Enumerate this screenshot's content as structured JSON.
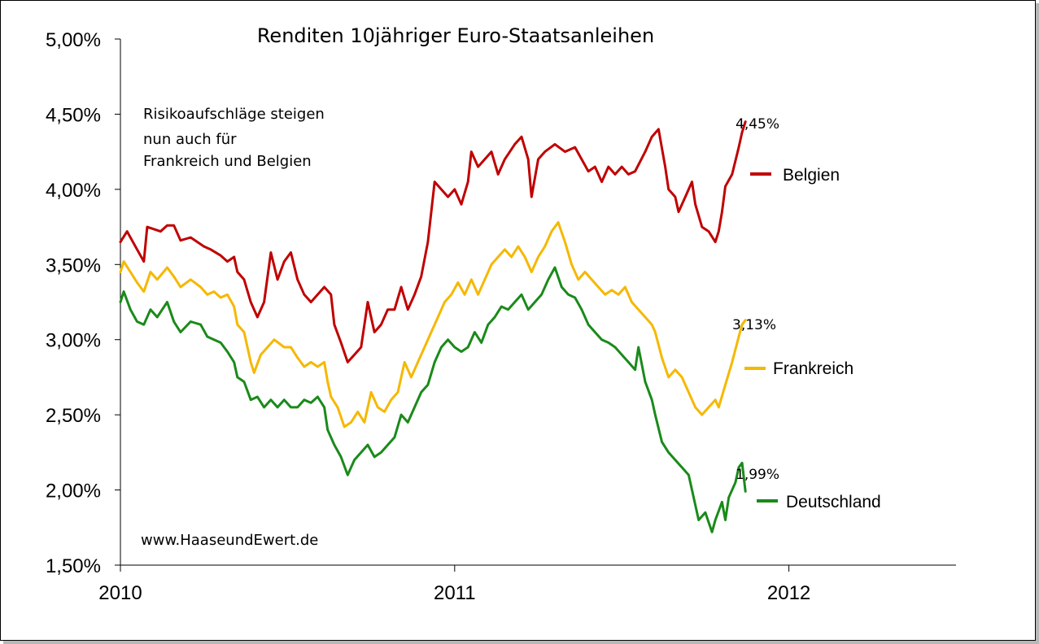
{
  "chart_data": {
    "type": "line",
    "title": "Renditen 10jähriger Euro-Staatsanleihen",
    "annotation": [
      "Risikoaufschläge steigen",
      "nun  auch für",
      "Frankreich und Belgien"
    ],
    "source": "www.HaaseundEwert.de",
    "xlim": [
      2010.0,
      2012.5
    ],
    "xticks": [
      "2010",
      "2011",
      "2012"
    ],
    "ylim": [
      1.5,
      5.0
    ],
    "yticks": [
      "1,50%",
      "2,00%",
      "2,50%",
      "3,00%",
      "3,50%",
      "4,00%",
      "4,50%",
      "5,00%"
    ],
    "series": [
      {
        "name": "Belgien",
        "color": "#c00000",
        "end_label": "4,45%",
        "points": [
          [
            2010.0,
            3.65
          ],
          [
            2010.02,
            3.72
          ],
          [
            2010.05,
            3.6
          ],
          [
            2010.07,
            3.52
          ],
          [
            2010.08,
            3.75
          ],
          [
            2010.12,
            3.72
          ],
          [
            2010.14,
            3.76
          ],
          [
            2010.16,
            3.76
          ],
          [
            2010.18,
            3.66
          ],
          [
            2010.21,
            3.68
          ],
          [
            2010.25,
            3.62
          ],
          [
            2010.27,
            3.6
          ],
          [
            2010.3,
            3.56
          ],
          [
            2010.32,
            3.52
          ],
          [
            2010.34,
            3.55
          ],
          [
            2010.35,
            3.45
          ],
          [
            2010.37,
            3.4
          ],
          [
            2010.39,
            3.25
          ],
          [
            2010.41,
            3.15
          ],
          [
            2010.43,
            3.25
          ],
          [
            2010.45,
            3.58
          ],
          [
            2010.47,
            3.4
          ],
          [
            2010.49,
            3.52
          ],
          [
            2010.51,
            3.58
          ],
          [
            2010.53,
            3.4
          ],
          [
            2010.55,
            3.3
          ],
          [
            2010.57,
            3.25
          ],
          [
            2010.59,
            3.3
          ],
          [
            2010.61,
            3.35
          ],
          [
            2010.63,
            3.3
          ],
          [
            2010.64,
            3.1
          ],
          [
            2010.66,
            2.98
          ],
          [
            2010.68,
            2.85
          ],
          [
            2010.7,
            2.9
          ],
          [
            2010.72,
            2.95
          ],
          [
            2010.73,
            3.1
          ],
          [
            2010.74,
            3.25
          ],
          [
            2010.76,
            3.05
          ],
          [
            2010.78,
            3.1
          ],
          [
            2010.8,
            3.2
          ],
          [
            2010.82,
            3.2
          ],
          [
            2010.84,
            3.35
          ],
          [
            2010.86,
            3.2
          ],
          [
            2010.88,
            3.3
          ],
          [
            2010.9,
            3.42
          ],
          [
            2010.92,
            3.65
          ],
          [
            2010.94,
            4.05
          ],
          [
            2010.96,
            4.0
          ],
          [
            2010.98,
            3.95
          ],
          [
            2011.0,
            4.0
          ],
          [
            2011.02,
            3.9
          ],
          [
            2011.04,
            4.05
          ],
          [
            2011.05,
            4.25
          ],
          [
            2011.07,
            4.15
          ],
          [
            2011.09,
            4.2
          ],
          [
            2011.11,
            4.25
          ],
          [
            2011.13,
            4.1
          ],
          [
            2011.15,
            4.2
          ],
          [
            2011.18,
            4.3
          ],
          [
            2011.2,
            4.35
          ],
          [
            2011.22,
            4.2
          ],
          [
            2011.23,
            3.95
          ],
          [
            2011.25,
            4.2
          ],
          [
            2011.27,
            4.25
          ],
          [
            2011.3,
            4.3
          ],
          [
            2011.33,
            4.25
          ],
          [
            2011.36,
            4.28
          ],
          [
            2011.38,
            4.2
          ],
          [
            2011.4,
            4.12
          ],
          [
            2011.42,
            4.15
          ],
          [
            2011.44,
            4.05
          ],
          [
            2011.46,
            4.15
          ],
          [
            2011.48,
            4.1
          ],
          [
            2011.5,
            4.15
          ],
          [
            2011.52,
            4.1
          ],
          [
            2011.54,
            4.12
          ],
          [
            2011.57,
            4.25
          ],
          [
            2011.59,
            4.35
          ],
          [
            2011.61,
            4.4
          ],
          [
            2011.63,
            4.15
          ],
          [
            2011.64,
            4.0
          ],
          [
            2011.66,
            3.95
          ],
          [
            2011.67,
            3.85
          ],
          [
            2011.69,
            3.95
          ],
          [
            2011.71,
            4.05
          ],
          [
            2011.72,
            3.9
          ],
          [
            2011.74,
            3.75
          ],
          [
            2011.76,
            3.72
          ],
          [
            2011.78,
            3.65
          ],
          [
            2011.79,
            3.72
          ],
          [
            2011.8,
            3.85
          ],
          [
            2011.81,
            4.02
          ],
          [
            2011.83,
            4.1
          ],
          [
            2011.85,
            4.28
          ],
          [
            2011.86,
            4.38
          ],
          [
            2011.87,
            4.45
          ]
        ]
      },
      {
        "name": "Frankreich",
        "color": "#f5b800",
        "end_label": "3,13%",
        "points": [
          [
            2010.0,
            3.45
          ],
          [
            2010.01,
            3.52
          ],
          [
            2010.03,
            3.45
          ],
          [
            2010.05,
            3.38
          ],
          [
            2010.07,
            3.32
          ],
          [
            2010.09,
            3.45
          ],
          [
            2010.11,
            3.4
          ],
          [
            2010.14,
            3.48
          ],
          [
            2010.16,
            3.42
          ],
          [
            2010.18,
            3.35
          ],
          [
            2010.21,
            3.4
          ],
          [
            2010.24,
            3.35
          ],
          [
            2010.26,
            3.3
          ],
          [
            2010.28,
            3.32
          ],
          [
            2010.3,
            3.28
          ],
          [
            2010.32,
            3.3
          ],
          [
            2010.34,
            3.22
          ],
          [
            2010.35,
            3.1
          ],
          [
            2010.37,
            3.05
          ],
          [
            2010.39,
            2.85
          ],
          [
            2010.4,
            2.78
          ],
          [
            2010.42,
            2.9
          ],
          [
            2010.44,
            2.95
          ],
          [
            2010.46,
            3.0
          ],
          [
            2010.49,
            2.95
          ],
          [
            2010.51,
            2.95
          ],
          [
            2010.53,
            2.88
          ],
          [
            2010.55,
            2.82
          ],
          [
            2010.57,
            2.85
          ],
          [
            2010.59,
            2.82
          ],
          [
            2010.61,
            2.85
          ],
          [
            2010.62,
            2.72
          ],
          [
            2010.63,
            2.62
          ],
          [
            2010.65,
            2.55
          ],
          [
            2010.67,
            2.42
          ],
          [
            2010.69,
            2.45
          ],
          [
            2010.71,
            2.52
          ],
          [
            2010.73,
            2.45
          ],
          [
            2010.75,
            2.65
          ],
          [
            2010.77,
            2.55
          ],
          [
            2010.79,
            2.52
          ],
          [
            2010.81,
            2.6
          ],
          [
            2010.83,
            2.65
          ],
          [
            2010.85,
            2.85
          ],
          [
            2010.87,
            2.75
          ],
          [
            2010.89,
            2.85
          ],
          [
            2010.91,
            2.95
          ],
          [
            2010.93,
            3.05
          ],
          [
            2010.95,
            3.15
          ],
          [
            2010.97,
            3.25
          ],
          [
            2010.99,
            3.3
          ],
          [
            2011.01,
            3.38
          ],
          [
            2011.03,
            3.3
          ],
          [
            2011.05,
            3.4
          ],
          [
            2011.07,
            3.3
          ],
          [
            2011.09,
            3.4
          ],
          [
            2011.11,
            3.5
          ],
          [
            2011.13,
            3.55
          ],
          [
            2011.15,
            3.6
          ],
          [
            2011.17,
            3.55
          ],
          [
            2011.19,
            3.62
          ],
          [
            2011.21,
            3.55
          ],
          [
            2011.23,
            3.45
          ],
          [
            2011.25,
            3.55
          ],
          [
            2011.27,
            3.62
          ],
          [
            2011.29,
            3.72
          ],
          [
            2011.31,
            3.78
          ],
          [
            2011.33,
            3.65
          ],
          [
            2011.35,
            3.5
          ],
          [
            2011.37,
            3.4
          ],
          [
            2011.39,
            3.45
          ],
          [
            2011.41,
            3.4
          ],
          [
            2011.43,
            3.35
          ],
          [
            2011.45,
            3.3
          ],
          [
            2011.47,
            3.33
          ],
          [
            2011.49,
            3.3
          ],
          [
            2011.51,
            3.35
          ],
          [
            2011.53,
            3.25
          ],
          [
            2011.55,
            3.2
          ],
          [
            2011.57,
            3.15
          ],
          [
            2011.59,
            3.1
          ],
          [
            2011.6,
            3.05
          ],
          [
            2011.62,
            2.88
          ],
          [
            2011.64,
            2.75
          ],
          [
            2011.66,
            2.8
          ],
          [
            2011.68,
            2.75
          ],
          [
            2011.7,
            2.65
          ],
          [
            2011.72,
            2.55
          ],
          [
            2011.74,
            2.5
          ],
          [
            2011.76,
            2.55
          ],
          [
            2011.78,
            2.6
          ],
          [
            2011.79,
            2.55
          ],
          [
            2011.81,
            2.7
          ],
          [
            2011.83,
            2.85
          ],
          [
            2011.85,
            3.02
          ],
          [
            2011.86,
            3.1
          ],
          [
            2011.87,
            3.13
          ]
        ]
      },
      {
        "name": "Deutschland",
        "color": "#1a8a1a",
        "end_label": "1,99%",
        "points": [
          [
            2010.0,
            3.25
          ],
          [
            2010.01,
            3.32
          ],
          [
            2010.03,
            3.2
          ],
          [
            2010.05,
            3.12
          ],
          [
            2010.07,
            3.1
          ],
          [
            2010.09,
            3.2
          ],
          [
            2010.11,
            3.15
          ],
          [
            2010.14,
            3.25
          ],
          [
            2010.16,
            3.12
          ],
          [
            2010.18,
            3.05
          ],
          [
            2010.21,
            3.12
          ],
          [
            2010.24,
            3.1
          ],
          [
            2010.26,
            3.02
          ],
          [
            2010.28,
            3.0
          ],
          [
            2010.3,
            2.98
          ],
          [
            2010.32,
            2.92
          ],
          [
            2010.34,
            2.85
          ],
          [
            2010.35,
            2.75
          ],
          [
            2010.37,
            2.72
          ],
          [
            2010.39,
            2.6
          ],
          [
            2010.41,
            2.62
          ],
          [
            2010.43,
            2.55
          ],
          [
            2010.45,
            2.6
          ],
          [
            2010.47,
            2.55
          ],
          [
            2010.49,
            2.6
          ],
          [
            2010.51,
            2.55
          ],
          [
            2010.53,
            2.55
          ],
          [
            2010.55,
            2.6
          ],
          [
            2010.57,
            2.58
          ],
          [
            2010.59,
            2.62
          ],
          [
            2010.61,
            2.55
          ],
          [
            2010.62,
            2.4
          ],
          [
            2010.64,
            2.3
          ],
          [
            2010.66,
            2.22
          ],
          [
            2010.68,
            2.1
          ],
          [
            2010.7,
            2.2
          ],
          [
            2010.72,
            2.25
          ],
          [
            2010.74,
            2.3
          ],
          [
            2010.76,
            2.22
          ],
          [
            2010.78,
            2.25
          ],
          [
            2010.8,
            2.3
          ],
          [
            2010.82,
            2.35
          ],
          [
            2010.84,
            2.5
          ],
          [
            2010.86,
            2.45
          ],
          [
            2010.88,
            2.55
          ],
          [
            2010.9,
            2.65
          ],
          [
            2010.92,
            2.7
          ],
          [
            2010.94,
            2.85
          ],
          [
            2010.96,
            2.95
          ],
          [
            2010.98,
            3.0
          ],
          [
            2011.0,
            2.95
          ],
          [
            2011.02,
            2.92
          ],
          [
            2011.04,
            2.95
          ],
          [
            2011.06,
            3.05
          ],
          [
            2011.08,
            2.98
          ],
          [
            2011.1,
            3.1
          ],
          [
            2011.12,
            3.15
          ],
          [
            2011.14,
            3.22
          ],
          [
            2011.16,
            3.2
          ],
          [
            2011.18,
            3.25
          ],
          [
            2011.2,
            3.3
          ],
          [
            2011.22,
            3.2
          ],
          [
            2011.24,
            3.25
          ],
          [
            2011.26,
            3.3
          ],
          [
            2011.28,
            3.4
          ],
          [
            2011.3,
            3.48
          ],
          [
            2011.32,
            3.35
          ],
          [
            2011.34,
            3.3
          ],
          [
            2011.36,
            3.28
          ],
          [
            2011.38,
            3.2
          ],
          [
            2011.4,
            3.1
          ],
          [
            2011.42,
            3.05
          ],
          [
            2011.44,
            3.0
          ],
          [
            2011.46,
            2.98
          ],
          [
            2011.48,
            2.95
          ],
          [
            2011.5,
            2.9
          ],
          [
            2011.52,
            2.85
          ],
          [
            2011.54,
            2.8
          ],
          [
            2011.55,
            2.95
          ],
          [
            2011.57,
            2.72
          ],
          [
            2011.59,
            2.6
          ],
          [
            2011.6,
            2.5
          ],
          [
            2011.62,
            2.32
          ],
          [
            2011.64,
            2.25
          ],
          [
            2011.66,
            2.2
          ],
          [
            2011.68,
            2.15
          ],
          [
            2011.7,
            2.1
          ],
          [
            2011.72,
            1.9
          ],
          [
            2011.73,
            1.8
          ],
          [
            2011.75,
            1.85
          ],
          [
            2011.77,
            1.72
          ],
          [
            2011.78,
            1.8
          ],
          [
            2011.8,
            1.92
          ],
          [
            2011.81,
            1.8
          ],
          [
            2011.82,
            1.95
          ],
          [
            2011.84,
            2.05
          ],
          [
            2011.85,
            2.15
          ],
          [
            2011.86,
            2.18
          ],
          [
            2011.87,
            1.99
          ]
        ]
      }
    ]
  }
}
